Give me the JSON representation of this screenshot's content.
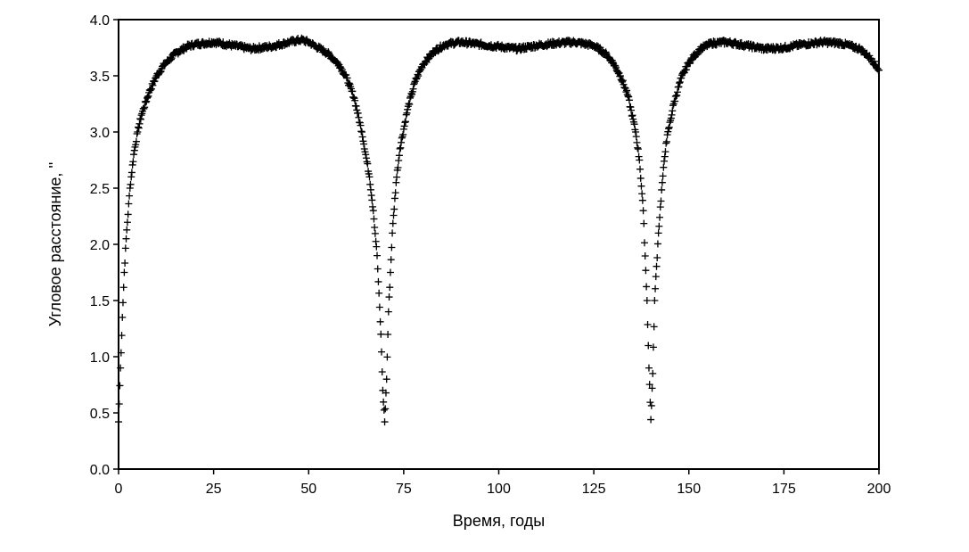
{
  "chart_data": {
    "type": "scatter",
    "title": "",
    "xlabel": "Время, годы",
    "ylabel": "Угловое расстояние, ''",
    "xlim": [
      0,
      200
    ],
    "ylim": [
      0.0,
      4.0
    ],
    "xticks": [
      0,
      25,
      50,
      75,
      100,
      125,
      150,
      175,
      200
    ],
    "xtick_labels": [
      "0",
      "25",
      "50",
      "75",
      "100",
      "125",
      "150",
      "175",
      "200"
    ],
    "yticks": [
      0.0,
      0.5,
      1.0,
      1.5,
      2.0,
      2.5,
      3.0,
      3.5,
      4.0
    ],
    "ytick_labels": [
      "0.0",
      "0.5",
      "1.0",
      "1.5",
      "2.0",
      "2.5",
      "3.0",
      "3.5",
      "4.0"
    ],
    "grid": false,
    "marker": "+",
    "marker_color": "#000000",
    "series": [
      {
        "x": [
          0,
          0.5,
          1,
          1.5,
          2,
          3,
          4,
          5,
          6,
          8,
          10,
          12,
          15,
          18,
          20,
          25,
          30,
          35,
          40,
          45,
          48,
          50,
          52,
          55,
          58,
          60,
          62,
          64,
          66,
          67,
          68,
          69,
          69.5,
          70,
          70.5,
          71,
          72,
          73,
          74,
          76,
          78,
          80,
          83,
          86,
          90,
          95,
          100,
          105,
          110,
          115,
          120,
          125,
          128,
          130,
          132,
          134,
          136,
          137,
          138,
          139,
          139.5,
          140,
          140.5,
          141,
          142,
          143,
          144,
          146,
          148,
          150,
          153,
          156,
          160,
          165,
          170,
          175,
          180,
          185,
          190,
          195,
          198,
          200
        ],
        "y": [
          0.42,
          0.9,
          1.35,
          1.75,
          2.05,
          2.5,
          2.8,
          3.0,
          3.15,
          3.35,
          3.5,
          3.6,
          3.7,
          3.76,
          3.78,
          3.8,
          3.77,
          3.74,
          3.76,
          3.8,
          3.82,
          3.8,
          3.76,
          3.7,
          3.6,
          3.48,
          3.3,
          3.0,
          2.6,
          2.3,
          1.9,
          1.2,
          0.7,
          0.42,
          0.8,
          1.4,
          2.1,
          2.55,
          2.85,
          3.2,
          3.45,
          3.6,
          3.72,
          3.78,
          3.8,
          3.78,
          3.76,
          3.74,
          3.77,
          3.79,
          3.8,
          3.77,
          3.7,
          3.62,
          3.5,
          3.32,
          3.0,
          2.75,
          2.3,
          1.5,
          0.9,
          0.44,
          0.85,
          1.5,
          2.1,
          2.55,
          2.9,
          3.25,
          3.48,
          3.62,
          3.74,
          3.79,
          3.8,
          3.77,
          3.74,
          3.75,
          3.78,
          3.8,
          3.79,
          3.74,
          3.65,
          3.55
        ]
      }
    ]
  }
}
